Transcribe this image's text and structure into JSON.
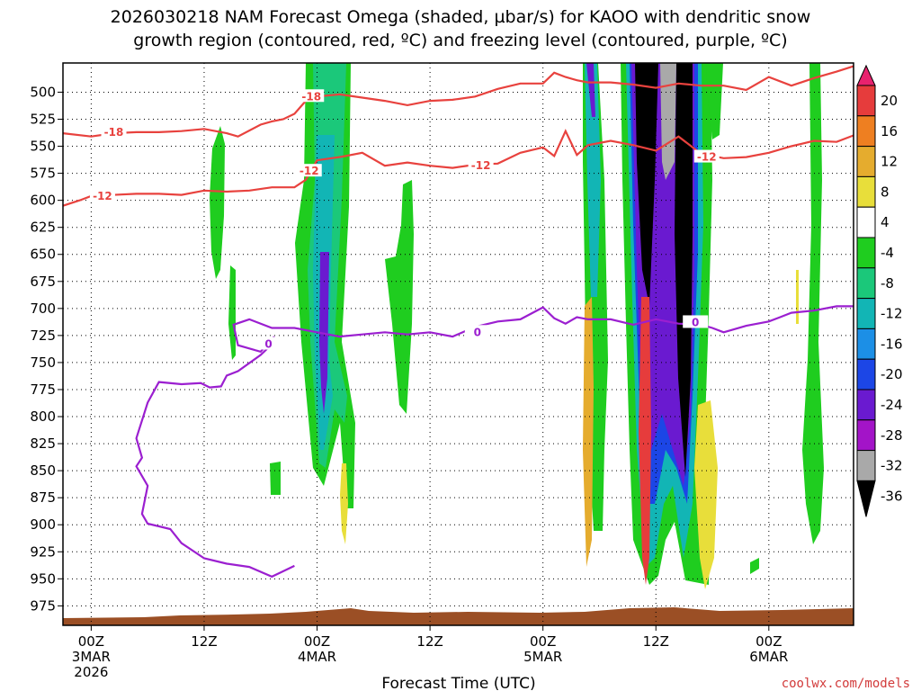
{
  "chart_data": {
    "type": "heatmap",
    "title_line1": "2026030218 NAM Forecast Omega (shaded, µbar/s) for KAOO with dendritic snow",
    "title_line2": "growth region (contoured, red, ºC) and freezing level (contoured, purple, ºC)",
    "xlabel": "Forecast Time (UTC)",
    "credit": "coolwx.com/models",
    "x_range_hours": [
      -2.5,
      67.5
    ],
    "y_range_mb": [
      473,
      993
    ],
    "y_ticks": [
      500,
      525,
      550,
      575,
      600,
      625,
      650,
      675,
      700,
      725,
      750,
      775,
      800,
      825,
      850,
      875,
      900,
      925,
      950,
      975
    ],
    "x_ticks": [
      {
        "hour": 0,
        "label": "00Z",
        "sub1": "3MAR",
        "sub2": "2026"
      },
      {
        "hour": 10,
        "label": "12Z",
        "sub1": "",
        "sub2": ""
      },
      {
        "hour": 20,
        "label": "00Z",
        "sub1": "4MAR",
        "sub2": ""
      },
      {
        "hour": 30,
        "label": "12Z",
        "sub1": "",
        "sub2": ""
      },
      {
        "hour": 40,
        "label": "00Z",
        "sub1": "5MAR",
        "sub2": ""
      },
      {
        "hour": 50,
        "label": "12Z",
        "sub1": "",
        "sub2": ""
      },
      {
        "hour": 60,
        "label": "00Z",
        "sub1": "6MAR",
        "sub2": ""
      }
    ],
    "colorbar": {
      "labels": [
        "20",
        "16",
        "12",
        "8",
        "4",
        "-4",
        "-8",
        "-12",
        "-16",
        "-20",
        "-24",
        "-28",
        "-32",
        "-36"
      ],
      "colors": [
        "#e8226e",
        "#e63c3c",
        "#ee7f21",
        "#e5ac2e",
        "#e8de3a",
        "#ffffff",
        "#1fcd1f",
        "#1bc87a",
        "#12b5b5",
        "#1c8fe6",
        "#1c46e6",
        "#6a1ad0",
        "#a314c8",
        "#a9a9a9",
        "#000000"
      ]
    },
    "contour_labels": {
      "dgz_minus18": "-18",
      "dgz_minus12": "-12",
      "freezing": "0"
    },
    "series": [
      {
        "name": "-18C isotherm (mb)",
        "color": "#e8423e",
        "x": [
          -2.5,
          0,
          2,
          4,
          6,
          8,
          10,
          12,
          13,
          15,
          16,
          17,
          18,
          19,
          20,
          22,
          24,
          26,
          28,
          30,
          32,
          34,
          36,
          38,
          40,
          41,
          42,
          43,
          44,
          46,
          48,
          50,
          52,
          54,
          56,
          58,
          60,
          62,
          64,
          66,
          67.5
        ],
        "y": [
          538,
          541,
          538,
          537,
          537,
          536,
          534,
          538,
          541,
          530,
          527,
          525,
          520,
          508,
          504,
          502,
          505,
          508,
          512,
          508,
          507,
          504,
          497,
          492,
          492,
          482,
          486,
          489,
          491,
          491,
          493,
          496,
          492,
          494,
          494,
          498,
          486,
          494,
          487,
          481,
          476
        ]
      },
      {
        "name": "-12C isotherm (mb)",
        "color": "#e8423e",
        "x": [
          -2.5,
          -1,
          0,
          2,
          4,
          6,
          8,
          10,
          12,
          14,
          16,
          18,
          19,
          20,
          22,
          24,
          26,
          28,
          30,
          32,
          34,
          36,
          38,
          40,
          41,
          42,
          43,
          44,
          46,
          48,
          50,
          52,
          54,
          56,
          58,
          60,
          62,
          64,
          66,
          67.5
        ],
        "y": [
          605,
          600,
          596,
          595,
          594,
          594,
          595,
          591,
          592,
          591,
          588,
          588,
          581,
          563,
          560,
          556,
          568,
          565,
          568,
          570,
          567,
          566,
          556,
          551,
          559,
          536,
          558,
          549,
          545,
          549,
          554,
          541,
          557,
          561,
          560,
          556,
          550,
          545,
          546,
          540
        ]
      },
      {
        "name": "0C freezing level (mb)",
        "color": "#9b1fd0",
        "x": [
          18,
          16,
          14,
          12,
          10,
          8,
          7,
          5,
          4.5,
          5,
          4,
          4.5,
          4,
          5,
          6,
          8,
          9.7,
          10.5,
          11.5,
          12,
          13,
          15,
          16,
          16.2,
          15,
          13,
          12.6,
          14,
          16,
          18,
          20,
          22,
          24,
          26,
          28,
          30,
          32,
          34,
          36,
          38,
          40,
          41,
          42,
          43,
          44,
          46,
          48,
          50,
          52,
          54,
          55,
          56,
          58,
          60,
          61,
          62,
          64,
          66,
          67.5
        ],
        "y": [
          938,
          948,
          939,
          936,
          931,
          917,
          904,
          899,
          890,
          864,
          846,
          838,
          820,
          787,
          768,
          770,
          769,
          773,
          772,
          762,
          758,
          743,
          733,
          726,
          740,
          734,
          715,
          710,
          718,
          718,
          722,
          726,
          724,
          722,
          724,
          722,
          726,
          717,
          712,
          710,
          699,
          709,
          714,
          708,
          710,
          710,
          715,
          710,
          714,
          715,
          718,
          722,
          716,
          712,
          708,
          704,
          702,
          698,
          698
        ]
      }
    ]
  }
}
